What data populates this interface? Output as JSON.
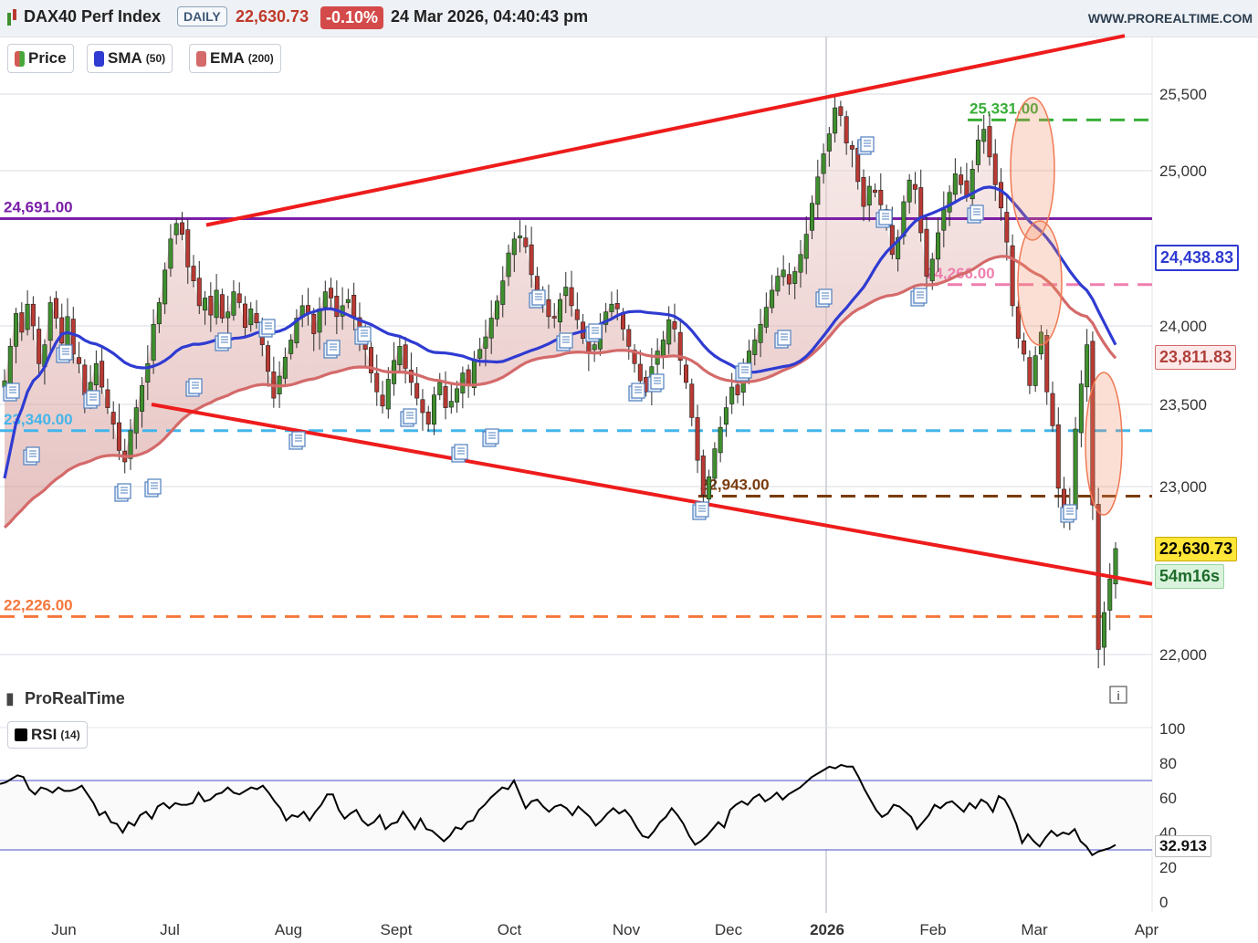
{
  "header": {
    "symbol": "DAX40 Perf Index",
    "period": "DAILY",
    "price": "22,630.73",
    "change": "-0.10%",
    "datetime": "24 Mar 2026, 04:40:43 pm",
    "site": "WWW.PROREALTIME.COM"
  },
  "legend": {
    "price": "Price",
    "sma": "SMA",
    "sma_param": "(50)",
    "ema": "EMA",
    "ema_param": "(200)",
    "rsi": "RSI",
    "rsi_param": "(14)"
  },
  "watermark": "ProRealTime",
  "badges": {
    "sma": "24,438.83",
    "ema": "23,811.83",
    "price": "22,630.73",
    "countdown": "54m16s",
    "rsi": "32.913"
  },
  "colors": {
    "up": "#3f8f2e",
    "down": "#b83a33",
    "sma": "#2f3bd1",
    "ema": "#d46a6a",
    "trend": "#ee1c1c",
    "purple": "#7a1fa8",
    "cyan": "#43b5ea",
    "orange": "#f4773a",
    "brown": "#7a3b0c",
    "green": "#37ae37",
    "pink": "#ef7fae"
  },
  "chart_data": [
    {
      "type": "candlestick",
      "title": "DAX40 Perf Index",
      "period": "DAILY",
      "x_ticks": [
        "Jun",
        "Jul",
        "Aug",
        "Sept",
        "Oct",
        "Nov",
        "Dec",
        "2026",
        "Feb",
        "Mar",
        "Apr"
      ],
      "y_ticks": [
        22000,
        23000,
        23500,
        24000,
        25000,
        25500
      ],
      "ylim": [
        21700,
        25900
      ],
      "series": [
        {
          "name": "Price",
          "kind": "close",
          "last": 22630.73,
          "closes": [
            23650,
            23870,
            24080,
            23960,
            24140,
            24000,
            23760,
            23880,
            24150,
            24050,
            23890,
            24060,
            23820,
            23760,
            23560,
            23640,
            23760,
            23610,
            23480,
            23380,
            23220,
            23150,
            23340,
            23480,
            23620,
            23760,
            24010,
            24150,
            24360,
            24560,
            24660,
            24590,
            24380,
            24290,
            24130,
            24180,
            24070,
            24230,
            24050,
            24090,
            24220,
            24150,
            23990,
            24110,
            24020,
            23880,
            23710,
            23540,
            23680,
            23800,
            23910,
            24050,
            24130,
            24080,
            23950,
            24110,
            24220,
            24180,
            24060,
            24130,
            24170,
            24060,
            23940,
            23850,
            23700,
            23580,
            23490,
            23660,
            23780,
            23870,
            23730,
            23640,
            23540,
            23450,
            23380,
            23560,
            23640,
            23480,
            23520,
            23600,
            23700,
            23620,
            23780,
            23850,
            23930,
            24050,
            24160,
            24290,
            24470,
            24560,
            24580,
            24510,
            24330,
            24210,
            24150,
            24060,
            24050,
            24170,
            24250,
            24130,
            24040,
            23920,
            23830,
            23880,
            24010,
            24090,
            24140,
            24110,
            23980,
            23870,
            23760,
            23650,
            23580,
            23740,
            23840,
            23910,
            24040,
            23980,
            23780,
            23640,
            23420,
            23160,
            22950,
            23060,
            23230,
            23360,
            23480,
            23610,
            23560,
            23740,
            23840,
            23910,
            24010,
            24120,
            24230,
            24320,
            24360,
            24270,
            24350,
            24460,
            24590,
            24790,
            24960,
            25110,
            25240,
            25410,
            25360,
            25180,
            25140,
            24930,
            24770,
            24900,
            24860,
            24780,
            24660,
            24460,
            24570,
            24800,
            24940,
            24880,
            24600,
            24320,
            24430,
            24600,
            24750,
            24860,
            24980,
            24910,
            24830,
            25010,
            25200,
            25270,
            25090,
            24910,
            24760,
            24540,
            24130,
            23920,
            23820,
            23620,
            23810,
            23960,
            23580,
            23370,
            22990,
            22840,
            22880,
            23350,
            23630,
            23880,
            22890,
            22030,
            22250,
            22450,
            22630.73
          ]
        },
        {
          "name": "SMA",
          "period": 50,
          "last": 24438.83
        },
        {
          "name": "EMA",
          "period": 200,
          "last": 23811.83
        }
      ],
      "levels": [
        {
          "value": 24691.0,
          "label": "24,691.00",
          "color": "purple",
          "style": "solid"
        },
        {
          "value": 25331.0,
          "label": "25,331.00",
          "color": "green",
          "style": "dashed"
        },
        {
          "value": 24266.0,
          "label": "24,266.00",
          "color": "pink",
          "style": "dashed"
        },
        {
          "value": 23340.0,
          "label": "23,340.00",
          "color": "cyan",
          "style": "dashed"
        },
        {
          "value": 22943.0,
          "label": "22,943.00",
          "color": "brown",
          "style": "dashed"
        },
        {
          "value": 22226.0,
          "label": "22,226.00",
          "color": "orange",
          "style": "dashed"
        }
      ],
      "trendlines": [
        {
          "name": "upper",
          "from": {
            "date": "Jul",
            "value": 24650
          },
          "to": {
            "date": "Mar",
            "value": 25880
          }
        },
        {
          "name": "lower",
          "from": {
            "date": "Jun",
            "value": 23500
          },
          "to": {
            "date": "Mar",
            "value": 22420
          }
        }
      ]
    },
    {
      "type": "line",
      "title": "RSI (14)",
      "ylim": [
        0,
        100
      ],
      "y_ticks": [
        0,
        20,
        40,
        60,
        80,
        100
      ],
      "bands": [
        30,
        70
      ],
      "last": 32.913,
      "values": [
        68,
        69,
        71,
        73,
        72,
        65,
        62,
        66,
        65,
        63,
        66,
        64,
        64,
        65,
        67,
        62,
        57,
        50,
        52,
        46,
        45,
        40,
        46,
        44,
        50,
        52,
        48,
        55,
        57,
        54,
        57,
        56,
        56,
        57,
        63,
        58,
        59,
        62,
        63,
        66,
        63,
        62,
        64,
        66,
        65,
        67,
        63,
        58,
        54,
        47,
        50,
        49,
        52,
        47,
        52,
        56,
        62,
        62,
        53,
        48,
        51,
        53,
        47,
        44,
        46,
        50,
        42,
        45,
        46,
        52,
        47,
        42,
        48,
        42,
        41,
        38,
        35,
        38,
        43,
        42,
        46,
        47,
        53,
        56,
        60,
        63,
        66,
        65,
        70,
        62,
        54,
        58,
        59,
        55,
        52,
        55,
        56,
        54,
        50,
        55,
        52,
        49,
        44,
        47,
        51,
        54,
        51,
        53,
        49,
        43,
        38,
        37,
        41,
        46,
        49,
        54,
        50,
        45,
        38,
        33,
        35,
        38,
        42,
        46,
        43,
        53,
        56,
        58,
        56,
        60,
        62,
        58,
        60,
        63,
        59,
        62,
        64,
        66,
        69,
        72,
        74,
        76,
        78,
        77,
        79,
        78,
        78,
        72,
        65,
        59,
        53,
        49,
        51,
        56,
        55,
        52,
        49,
        42,
        46,
        50,
        56,
        54,
        57,
        58,
        55,
        52,
        57,
        54,
        59,
        57,
        52,
        61,
        59,
        53,
        45,
        34,
        39,
        35,
        32,
        37,
        41,
        38,
        40,
        39,
        42,
        35,
        32,
        27,
        29,
        30,
        31,
        32.9
      ]
    }
  ]
}
